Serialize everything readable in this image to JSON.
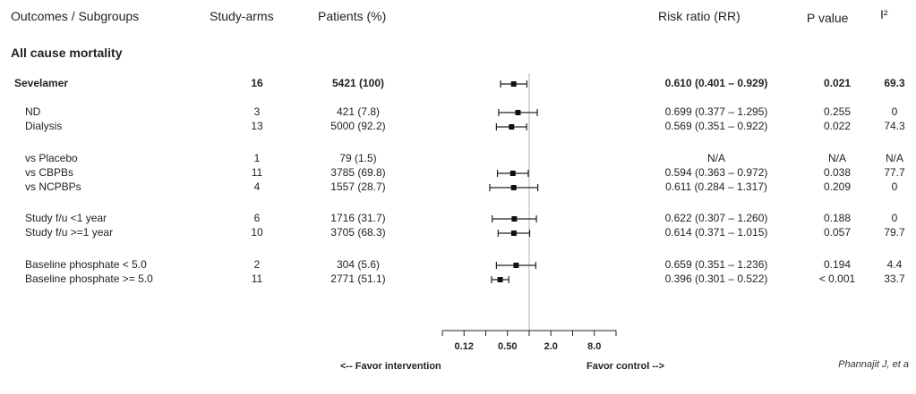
{
  "headers": {
    "outcomes": "Outcomes / Subgroups",
    "arms": "Study-arms",
    "patients": "Patients (%)",
    "rr": "Risk ratio (RR)",
    "p": "P value",
    "i2": "I²"
  },
  "section_title": "All cause mortality",
  "footer": {
    "favor_left": "<-- Favor intervention",
    "favor_right": "Favor control -->",
    "citation": "Phannajit J, et a"
  },
  "chart_data": {
    "type": "forest",
    "scale": "log2",
    "xlim": [
      0.0625,
      16
    ],
    "reference_line": 1,
    "tick_labels": [
      "0.12",
      "0.50",
      "2.0",
      "8.0"
    ],
    "tick_values": [
      0.125,
      0.5,
      2,
      8
    ],
    "minor_ticks": [
      0.0625,
      0.125,
      0.25,
      0.5,
      1,
      2,
      4,
      8,
      16
    ],
    "rows": [
      {
        "label": "Sevelamer",
        "arms": "16",
        "patients": "5421 (100)",
        "rr": 0.61,
        "lo": 0.401,
        "hi": 0.929,
        "rr_text": "0.610 (0.401 – 0.929)",
        "p": "0.021",
        "i2": "69.3",
        "bold": true
      },
      {
        "label": "ND",
        "arms": "3",
        "patients": "421 (7.8)",
        "rr": 0.699,
        "lo": 0.377,
        "hi": 1.295,
        "rr_text": "0.699 (0.377 – 1.295)",
        "p": "0.255",
        "i2": "0",
        "bold": false
      },
      {
        "label": "Dialysis",
        "arms": "13",
        "patients": "5000 (92.2)",
        "rr": 0.569,
        "lo": 0.351,
        "hi": 0.922,
        "rr_text": "0.569 (0.351 – 0.922)",
        "p": "0.022",
        "i2": "74.3",
        "bold": false
      },
      {
        "label": "vs Placebo",
        "arms": "1",
        "patients": "79 (1.5)",
        "rr": null,
        "lo": null,
        "hi": null,
        "rr_text": "N/A",
        "p": "N/A",
        "i2": "N/A",
        "bold": false
      },
      {
        "label": "vs CBPBs",
        "arms": "11",
        "patients": "3785 (69.8)",
        "rr": 0.594,
        "lo": 0.363,
        "hi": 0.972,
        "rr_text": "0.594 (0.363 – 0.972)",
        "p": "0.038",
        "i2": "77.7",
        "bold": false
      },
      {
        "label": "vs NCPBPs",
        "arms": "4",
        "patients": "1557 (28.7)",
        "rr": 0.611,
        "lo": 0.284,
        "hi": 1.317,
        "rr_text": "0.611 (0.284 – 1.317)",
        "p": "0.209",
        "i2": "0",
        "bold": false
      },
      {
        "label": "Study f/u <1 year",
        "arms": "6",
        "patients": "1716 (31.7)",
        "rr": 0.622,
        "lo": 0.307,
        "hi": 1.26,
        "rr_text": "0.622 (0.307 – 1.260)",
        "p": "0.188",
        "i2": "0",
        "bold": false
      },
      {
        "label": "Study f/u >=1 year",
        "arms": "10",
        "patients": "3705 (68.3)",
        "rr": 0.614,
        "lo": 0.371,
        "hi": 1.015,
        "rr_text": "0.614 (0.371 – 1.015)",
        "p": "0.057",
        "i2": "79.7",
        "bold": false
      },
      {
        "label": "Baseline phosphate < 5.0",
        "arms": "2",
        "patients": "304 (5.6)",
        "rr": 0.659,
        "lo": 0.351,
        "hi": 1.236,
        "rr_text": "0.659 (0.351 – 1.236)",
        "p": "0.194",
        "i2": "4.4",
        "bold": false
      },
      {
        "label": "Baseline phosphate >= 5.0",
        "arms": "11",
        "patients": "2771 (51.1)",
        "rr": 0.396,
        "lo": 0.301,
        "hi": 0.522,
        "rr_text": "0.396 (0.301 – 0.522)",
        "p": "< 0.001",
        "i2": "33.7",
        "bold": false
      }
    ]
  }
}
